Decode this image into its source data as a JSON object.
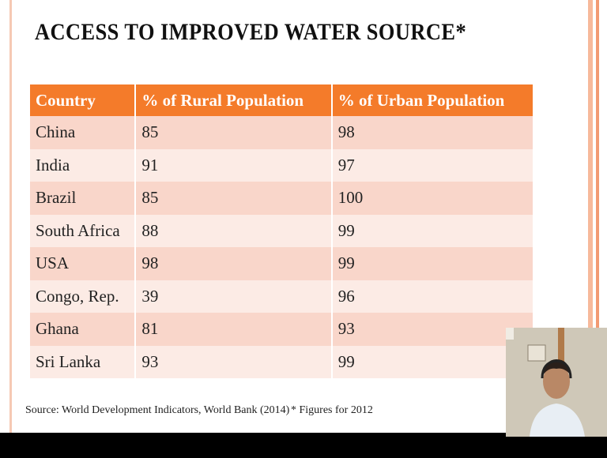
{
  "header": {
    "title": "ACCESS TO IMPROVED WATER SOURCE*"
  },
  "table": {
    "columns": [
      "Country",
      "% of Rural Population",
      "% of Urban Population"
    ],
    "rows": [
      [
        "China",
        85,
        98
      ],
      [
        "India",
        91,
        97
      ],
      [
        "Brazil",
        85,
        100
      ],
      [
        "South Africa",
        88,
        99
      ],
      [
        "USA",
        98,
        99
      ],
      [
        "Congo, Rep.",
        39,
        96
      ],
      [
        "Ghana",
        81,
        93
      ],
      [
        "Sri Lanka",
        93,
        99
      ]
    ]
  },
  "footer": {
    "source": "Source: World Development Indicators, World Bank (2014)",
    "note": "* Figures for 2012"
  }
}
